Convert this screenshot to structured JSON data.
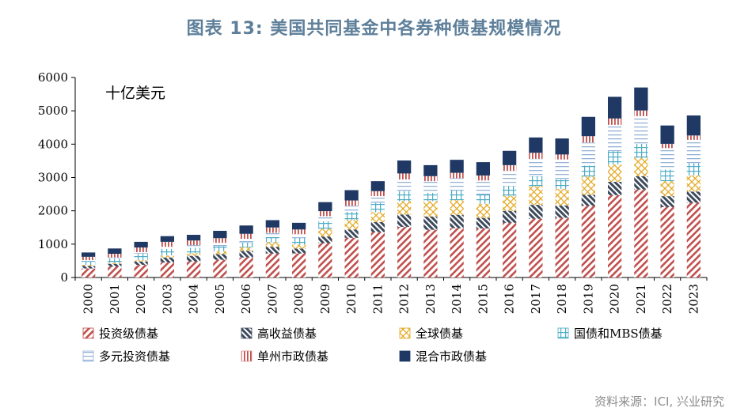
{
  "page_title": "图表 13: 美国共同基金中各券种债基规模情况",
  "source": "资料来源：ICI, 兴业研究",
  "chart_data": {
    "type": "bar",
    "stacked": true,
    "unit_label": "十亿美元",
    "ylim": [
      0,
      6000
    ],
    "yticks": [
      0,
      1000,
      2000,
      3000,
      4000,
      5000,
      6000
    ],
    "grid": false,
    "legend_position": "bottom",
    "categories": [
      "2000",
      "2001",
      "2002",
      "2003",
      "2004",
      "2005",
      "2006",
      "2007",
      "2008",
      "2009",
      "2010",
      "2011",
      "2012",
      "2013",
      "2014",
      "2015",
      "2016",
      "2017",
      "2018",
      "2019",
      "2020",
      "2021",
      "2022",
      "2023"
    ],
    "series": [
      {
        "name": "投资级债基",
        "color": "#c0504d",
        "pattern": "diag-red",
        "values": [
          270,
          330,
          380,
          450,
          480,
          530,
          600,
          720,
          720,
          1030,
          1190,
          1360,
          1520,
          1430,
          1480,
          1470,
          1640,
          1760,
          1790,
          2150,
          2470,
          2640,
          2110,
          2240
        ]
      },
      {
        "name": "高收益债基",
        "color": "#3d4a5c",
        "pattern": "diag-dark",
        "values": [
          80,
          80,
          100,
          150,
          170,
          170,
          200,
          200,
          150,
          200,
          250,
          300,
          370,
          400,
          400,
          320,
          360,
          420,
          370,
          330,
          400,
          400,
          330,
          340
        ]
      },
      {
        "name": "全球债基",
        "color": "#e3a51a",
        "pattern": "crosshatch-gold",
        "values": [
          30,
          30,
          40,
          60,
          80,
          90,
          110,
          140,
          120,
          230,
          290,
          300,
          400,
          460,
          440,
          420,
          450,
          560,
          500,
          550,
          520,
          550,
          450,
          480
        ]
      },
      {
        "name": "国债和MBS债基",
        "color": "#4bacc6",
        "pattern": "grid-cyan",
        "values": [
          110,
          130,
          200,
          200,
          160,
          150,
          140,
          150,
          200,
          220,
          240,
          280,
          300,
          250,
          290,
          280,
          290,
          300,
          280,
          330,
          400,
          420,
          350,
          370
        ]
      },
      {
        "name": "多元投资债基",
        "color": "#95b3d7",
        "pattern": "hlines-blue",
        "values": [
          30,
          30,
          40,
          60,
          80,
          100,
          110,
          130,
          110,
          160,
          180,
          200,
          350,
          350,
          370,
          420,
          460,
          520,
          600,
          690,
          790,
          830,
          640,
          700
        ]
      },
      {
        "name": "单州市政债基",
        "color": "#d99694",
        "pattern": "vlines-pink",
        "values": [
          100,
          110,
          140,
          150,
          140,
          140,
          150,
          160,
          140,
          150,
          160,
          150,
          180,
          150,
          160,
          150,
          170,
          180,
          150,
          190,
          190,
          170,
          130,
          130
        ]
      },
      {
        "name": "混合市政债基",
        "color": "#1f3864",
        "pattern": "solid-navy",
        "values": [
          130,
          160,
          170,
          170,
          170,
          220,
          250,
          220,
          200,
          270,
          310,
          300,
          390,
          330,
          390,
          400,
          430,
          460,
          480,
          580,
          650,
          690,
          550,
          600
        ]
      }
    ]
  }
}
